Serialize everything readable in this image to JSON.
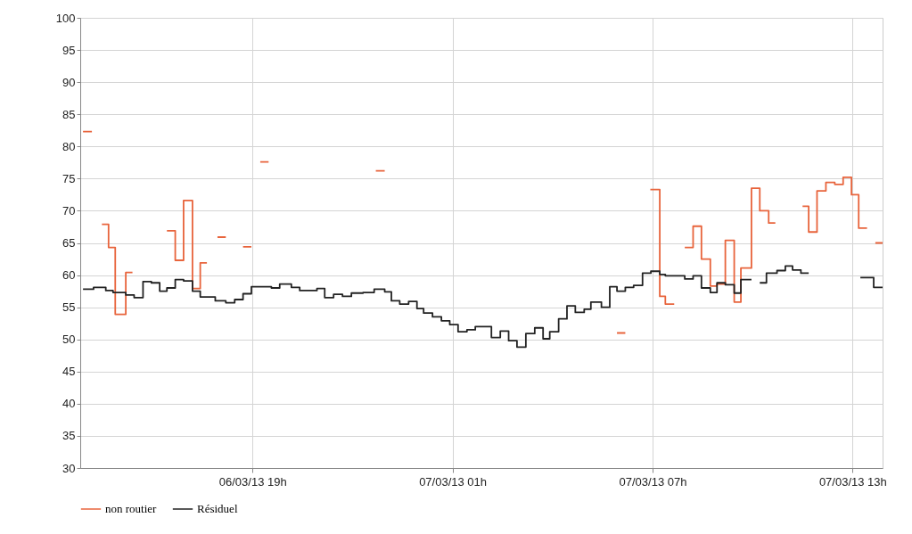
{
  "chart_data": {
    "type": "step",
    "xlim": [
      "--03-06T13:50",
      "--03-07T13:54"
    ],
    "ylim": [
      30,
      100
    ],
    "xticks": [
      {
        "value": "--03-06T19:00",
        "label": "06/03/13 19h"
      },
      {
        "value": "--03-07T01:00",
        "label": "07/03/13 01h"
      },
      {
        "value": "--03-07T07:00",
        "label": "07/03/13 07h"
      },
      {
        "value": "--03-07T13:00",
        "label": "07/03/13 13h"
      }
    ],
    "yticks": [
      30,
      35,
      40,
      45,
      50,
      55,
      60,
      65,
      70,
      75,
      80,
      85,
      90,
      95,
      100
    ],
    "grid": true,
    "legend": "bottom",
    "marker": "none",
    "line_style": "solid",
    "series": [
      {
        "name": "non routier",
        "color": "#e8643c",
        "x": [
          "--03-06T13:55",
          "--03-06T14:11",
          "--03-06T14:18",
          "--03-06T14:29",
          "--03-06T14:41",
          "--03-06T14:53",
          "--03-06T15:12",
          "--03-06T15:24",
          "--03-06T15:30",
          "--03-06T16:26",
          "--03-06T16:41",
          "--03-06T16:56",
          "--03-06T17:12",
          "--03-06T17:26",
          "--03-06T17:38",
          "--03-06T17:42",
          "--03-06T17:57",
          "--03-06T18:12",
          "--03-06T18:18",
          "--03-06T18:43",
          "--03-06T18:58",
          "--03-06T19:06",
          "--03-06T19:14",
          "--03-06T19:29",
          "--03-06T19:36",
          "--03-06T22:42",
          "--03-06T22:58",
          "--03-06T23:06",
          "--03-07T05:56",
          "--03-07T06:11",
          "--03-07T06:30",
          "--03-07T06:56",
          "--03-07T07:13",
          "--03-07T07:23",
          "--03-07T07:39",
          "--03-07T07:48",
          "--03-07T07:58",
          "--03-07T08:13",
          "--03-07T08:28",
          "--03-07T08:44",
          "--03-07T08:56",
          "--03-07T09:11",
          "--03-07T09:27",
          "--03-07T09:39",
          "--03-07T09:58",
          "--03-07T10:13",
          "--03-07T10:29",
          "--03-07T10:41",
          "--03-07T10:48",
          "--03-07T11:30",
          "--03-07T11:41",
          "--03-07T11:56",
          "--03-07T12:12",
          "--03-07T12:28",
          "--03-07T12:43",
          "--03-07T12:58",
          "--03-07T13:11",
          "--03-07T13:26",
          "--03-07T13:33",
          "--03-07T13:41",
          "--03-07T13:54"
        ],
        "values": [
          82.3,
          82.3,
          null,
          67.9,
          64.3,
          53.9,
          60.4,
          60.4,
          null,
          66.9,
          62.3,
          71.6,
          57.9,
          61.9,
          61.9,
          null,
          65.9,
          65.9,
          null,
          64.4,
          64.4,
          null,
          77.6,
          77.6,
          null,
          76.2,
          76.2,
          null,
          51.0,
          51.0,
          null,
          73.3,
          56.7,
          55.5,
          55.5,
          null,
          64.3,
          67.6,
          62.5,
          58.3,
          58.6,
          65.4,
          55.8,
          61.1,
          73.5,
          70.0,
          68.1,
          68.1,
          null,
          70.7,
          66.7,
          73.1,
          74.4,
          74.1,
          75.2,
          72.5,
          67.3,
          67.3,
          null,
          65.0,
          65.0
        ]
      },
      {
        "name": "Résiduel",
        "color": "#222222",
        "x": [
          "--03-06T13:55",
          "--03-06T14:14",
          "--03-06T14:36",
          "--03-06T14:49",
          "--03-06T15:12",
          "--03-06T15:27",
          "--03-06T15:43",
          "--03-06T15:58",
          "--03-06T16:13",
          "--03-06T16:26",
          "--03-06T16:41",
          "--03-06T16:56",
          "--03-06T17:12",
          "--03-06T17:26",
          "--03-06T17:53",
          "--03-06T18:12",
          "--03-06T18:28",
          "--03-06T18:43",
          "--03-06T18:58",
          "--03-06T19:34",
          "--03-06T19:49",
          "--03-06T20:10",
          "--03-06T20:25",
          "--03-06T20:56",
          "--03-06T21:10",
          "--03-06T21:26",
          "--03-06T21:42",
          "--03-06T21:58",
          "--03-06T22:19",
          "--03-06T22:39",
          "--03-06T22:58",
          "--03-06T23:10",
          "--03-06T23:25",
          "--03-06T23:41",
          "--03-06T23:56",
          "--03-07T00:08",
          "--03-07T00:24",
          "--03-07T00:40",
          "--03-07T00:55",
          "--03-07T01:10",
          "--03-07T01:26",
          "--03-07T01:41",
          "--03-07T02:10",
          "--03-07T02:26",
          "--03-07T02:41",
          "--03-07T02:56",
          "--03-07T03:12",
          "--03-07T03:28",
          "--03-07T03:43",
          "--03-07T03:55",
          "--03-07T04:11",
          "--03-07T04:26",
          "--03-07T04:41",
          "--03-07T04:57",
          "--03-07T05:09",
          "--03-07T05:28",
          "--03-07T05:43",
          "--03-07T05:56",
          "--03-07T06:11",
          "--03-07T06:26",
          "--03-07T06:42",
          "--03-07T06:57",
          "--03-07T07:13",
          "--03-07T07:23",
          "--03-07T07:58",
          "--03-07T08:13",
          "--03-07T08:28",
          "--03-07T08:44",
          "--03-07T08:56",
          "--03-07T09:11",
          "--03-07T09:27",
          "--03-07T09:39",
          "--03-07T09:58",
          "--03-07T10:00",
          "--03-07T10:13",
          "--03-07T10:25",
          "--03-07T10:44",
          "--03-07T10:59",
          "--03-07T11:12",
          "--03-07T11:27",
          "--03-07T11:41",
          "--03-07T11:45",
          "--03-07T13:14",
          "--03-07T13:38",
          "--03-07T13:54"
        ],
        "values": [
          57.8,
          58.1,
          57.6,
          57.3,
          56.9,
          56.5,
          59.0,
          58.8,
          57.5,
          58.0,
          59.3,
          59.1,
          57.5,
          56.6,
          56.0,
          55.7,
          56.2,
          57.1,
          58.2,
          58.0,
          58.6,
          58.1,
          57.6,
          57.9,
          56.5,
          57.0,
          56.7,
          57.2,
          57.3,
          57.8,
          57.4,
          56.0,
          55.5,
          55.9,
          54.8,
          54.1,
          53.5,
          52.9,
          52.3,
          51.2,
          51.5,
          52.0,
          50.3,
          51.3,
          49.8,
          48.8,
          50.9,
          51.8,
          50.1,
          51.2,
          53.2,
          55.2,
          54.2,
          54.7,
          55.8,
          55.0,
          58.2,
          57.5,
          58.1,
          58.4,
          60.3,
          60.6,
          60.1,
          59.9,
          59.4,
          59.9,
          58.0,
          57.3,
          58.8,
          58.5,
          57.2,
          59.3,
          59.3,
          null,
          58.8,
          60.3,
          60.7,
          61.4,
          60.8,
          60.3,
          60.3,
          null,
          59.6,
          58.1,
          58.1
        ]
      }
    ]
  }
}
